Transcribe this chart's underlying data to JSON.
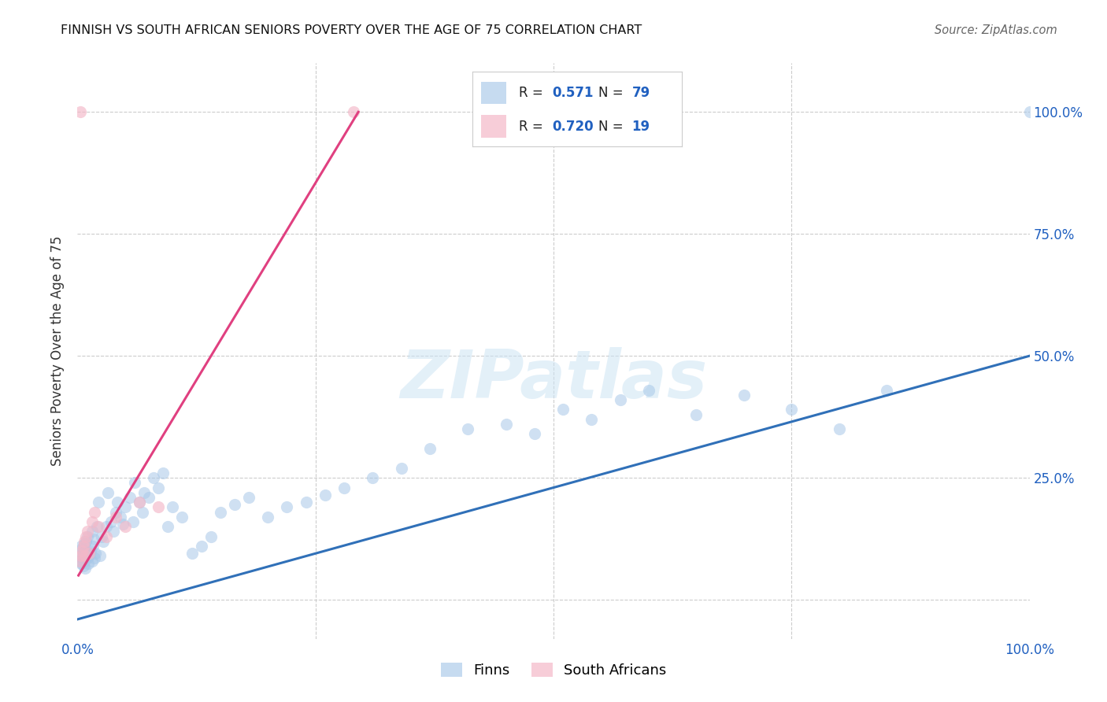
{
  "title": "FINNISH VS SOUTH AFRICAN SENIORS POVERTY OVER THE AGE OF 75 CORRELATION CHART",
  "source": "Source: ZipAtlas.com",
  "ylabel": "Seniors Poverty Over the Age of 75",
  "watermark": "ZIPatlas",
  "xlim": [
    0.0,
    1.0
  ],
  "ylim": [
    -0.08,
    1.1
  ],
  "legend_r_blue": "0.571",
  "legend_n_blue": "79",
  "legend_r_pink": "0.720",
  "legend_n_pink": "19",
  "blue_color": "#a8c8e8",
  "pink_color": "#f4b8c8",
  "line_blue_color": "#3070b8",
  "line_pink_color": "#e04080",
  "title_color": "#111111",
  "source_color": "#666666",
  "r_value_color": "#2060c0",
  "background_color": "#ffffff",
  "grid_color": "#cccccc",
  "finns_x": [
    0.002,
    0.003,
    0.004,
    0.004,
    0.005,
    0.005,
    0.006,
    0.006,
    0.007,
    0.007,
    0.008,
    0.008,
    0.009,
    0.01,
    0.01,
    0.011,
    0.012,
    0.013,
    0.014,
    0.015,
    0.015,
    0.016,
    0.017,
    0.018,
    0.019,
    0.02,
    0.022,
    0.024,
    0.025,
    0.027,
    0.03,
    0.032,
    0.035,
    0.038,
    0.04,
    0.042,
    0.045,
    0.048,
    0.05,
    0.055,
    0.058,
    0.06,
    0.065,
    0.068,
    0.07,
    0.075,
    0.08,
    0.085,
    0.09,
    0.095,
    0.1,
    0.11,
    0.12,
    0.13,
    0.14,
    0.15,
    0.165,
    0.18,
    0.2,
    0.22,
    0.24,
    0.26,
    0.28,
    0.31,
    0.34,
    0.37,
    0.41,
    0.45,
    0.48,
    0.51,
    0.54,
    0.57,
    0.6,
    0.65,
    0.7,
    0.75,
    0.8,
    0.85,
    1.0
  ],
  "finns_y": [
    0.08,
    0.09,
    0.075,
    0.11,
    0.085,
    0.105,
    0.07,
    0.095,
    0.08,
    0.115,
    0.065,
    0.1,
    0.12,
    0.085,
    0.13,
    0.075,
    0.09,
    0.095,
    0.1,
    0.08,
    0.14,
    0.11,
    0.125,
    0.085,
    0.095,
    0.15,
    0.2,
    0.09,
    0.13,
    0.12,
    0.15,
    0.22,
    0.16,
    0.14,
    0.18,
    0.2,
    0.17,
    0.155,
    0.19,
    0.21,
    0.16,
    0.24,
    0.2,
    0.18,
    0.22,
    0.21,
    0.25,
    0.23,
    0.26,
    0.15,
    0.19,
    0.17,
    0.095,
    0.11,
    0.13,
    0.18,
    0.195,
    0.21,
    0.17,
    0.19,
    0.2,
    0.215,
    0.23,
    0.25,
    0.27,
    0.31,
    0.35,
    0.36,
    0.34,
    0.39,
    0.37,
    0.41,
    0.43,
    0.38,
    0.42,
    0.39,
    0.35,
    0.43,
    1.0
  ],
  "sa_x": [
    0.002,
    0.003,
    0.004,
    0.005,
    0.006,
    0.007,
    0.008,
    0.009,
    0.01,
    0.012,
    0.015,
    0.018,
    0.022,
    0.03,
    0.04,
    0.05,
    0.065,
    0.085,
    0.29
  ],
  "sa_y": [
    0.08,
    1.0,
    0.09,
    0.1,
    0.11,
    0.12,
    0.09,
    0.13,
    0.14,
    0.095,
    0.16,
    0.18,
    0.15,
    0.13,
    0.17,
    0.15,
    0.2,
    0.19,
    1.0
  ],
  "blue_line_x": [
    0.0,
    1.0
  ],
  "blue_line_y": [
    -0.04,
    0.5
  ],
  "pink_line_x": [
    0.001,
    0.295
  ],
  "pink_line_y": [
    0.05,
    1.0
  ]
}
